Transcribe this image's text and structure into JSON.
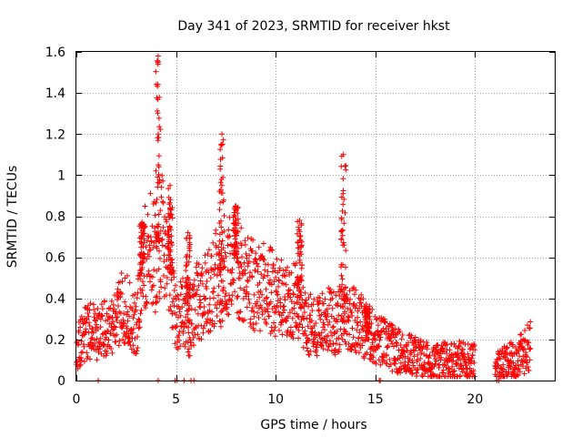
{
  "chart_data": {
    "type": "scatter",
    "title": "Day 341 of 2023, SRMTID for receiver hkst",
    "xlabel": "GPS time / hours",
    "ylabel": "SRMTID / TECUs",
    "xlim": [
      0,
      24
    ],
    "ylim": [
      0,
      1.6
    ],
    "x_ticks": [
      "0",
      "5",
      "10",
      "15",
      "20"
    ],
    "y_ticks": [
      "0",
      "0.2",
      "0.4",
      "0.6",
      "0.8",
      "1",
      "1.2",
      "1.4",
      "1.6"
    ],
    "grid": true,
    "marker": "+",
    "color": "#ff0000",
    "profile": {
      "x": [
        0,
        0.3,
        0.6,
        1.0,
        1.5,
        2.0,
        2.3,
        2.7,
        3.0,
        3.3,
        3.6,
        4.0,
        4.3,
        4.7,
        5.0,
        5.3,
        5.7,
        6.0,
        6.5,
        7.0,
        7.3,
        7.6,
        8.0,
        8.5,
        9.0,
        9.5,
        10.0,
        10.5,
        11.0,
        11.5,
        12.0,
        12.5,
        13.0,
        13.5,
        14.0,
        14.5,
        15.0,
        15.5,
        16.0,
        16.5,
        17.0,
        17.5,
        18.0,
        18.5,
        19.0,
        19.5,
        19.9,
        21.2,
        21.5,
        22.0,
        22.5,
        22.8
      ],
      "y": [
        0.15,
        0.2,
        0.25,
        0.24,
        0.25,
        0.27,
        0.38,
        0.32,
        0.25,
        0.55,
        0.65,
        0.6,
        0.7,
        0.55,
        0.3,
        0.35,
        0.25,
        0.38,
        0.42,
        0.5,
        0.45,
        0.55,
        0.58,
        0.5,
        0.45,
        0.45,
        0.42,
        0.38,
        0.4,
        0.3,
        0.25,
        0.3,
        0.28,
        0.32,
        0.3,
        0.25,
        0.2,
        0.18,
        0.15,
        0.13,
        0.12,
        0.1,
        0.08,
        0.1,
        0.1,
        0.1,
        0.09,
        0.07,
        0.08,
        0.1,
        0.14,
        0.18
      ]
    },
    "spikes": [
      {
        "x": 4.1,
        "peak": 1.58
      },
      {
        "x": 7.3,
        "peak": 1.2
      },
      {
        "x": 11.2,
        "peak": 0.78
      },
      {
        "x": 13.4,
        "peak": 1.1
      },
      {
        "x": 4.7,
        "peak": 0.95
      },
      {
        "x": 5.6,
        "peak": 0.72
      },
      {
        "x": 3.3,
        "peak": 0.77
      },
      {
        "x": 14.6,
        "peak": 0.35
      },
      {
        "x": 8.0,
        "peak": 0.85
      }
    ],
    "gaps": [
      [
        20.0,
        21.0
      ],
      [
        23.0,
        24.0
      ]
    ],
    "zero_points": [
      1.1,
      4.1,
      4.95,
      5.05,
      5.4,
      5.75,
      5.9,
      15.2,
      15.25,
      21.1,
      21.2
    ]
  }
}
